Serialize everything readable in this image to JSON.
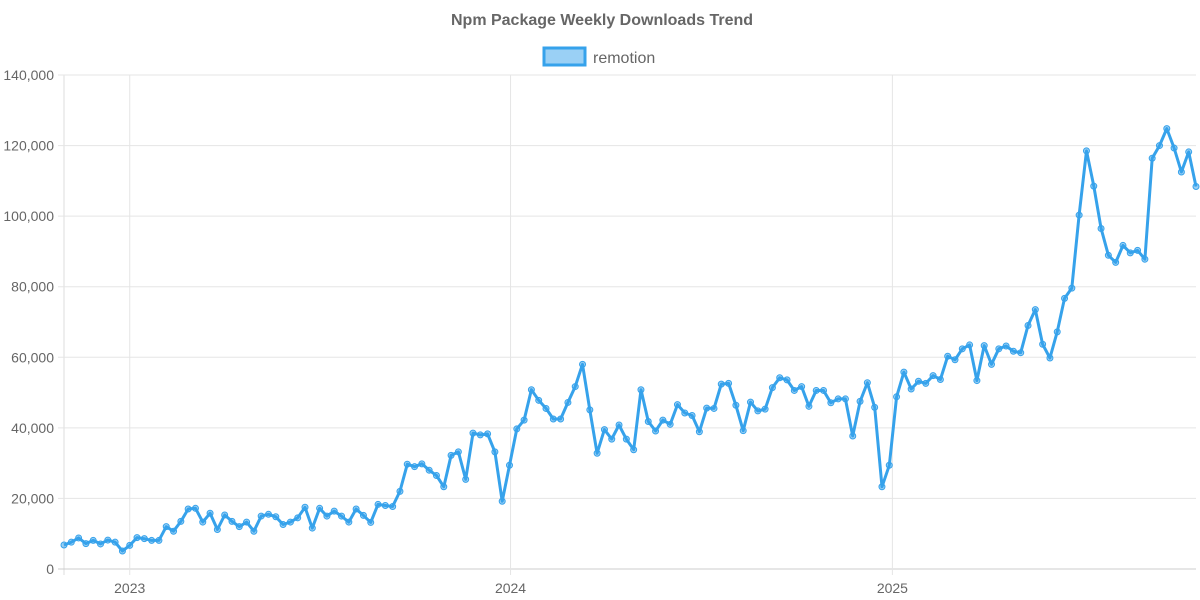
{
  "chart_data": {
    "type": "line",
    "title": "Npm Package Weekly Downloads Trend",
    "xlabel": "",
    "ylabel": "",
    "ylim": [
      0,
      140000
    ],
    "y_ticks": [
      "0",
      "20,000",
      "40,000",
      "60,000",
      "80,000",
      "100,000",
      "120,000",
      "140,000"
    ],
    "x_ticks": [
      "2023",
      "2024",
      "2025"
    ],
    "grid": true,
    "legend_position": "top",
    "colors": {
      "line": "#36a2eb",
      "fill": "rgba(54,162,235,0.5)"
    },
    "x": [
      "2022-10-30",
      "2022-11-06",
      "2022-11-13",
      "2022-11-20",
      "2022-11-27",
      "2022-12-04",
      "2022-12-11",
      "2022-12-18",
      "2022-12-25",
      "2023-01-01",
      "2023-01-08",
      "2023-01-15",
      "2023-01-22",
      "2023-01-29",
      "2023-02-05",
      "2023-02-12",
      "2023-02-19",
      "2023-02-26",
      "2023-03-05",
      "2023-03-12",
      "2023-03-19",
      "2023-03-26",
      "2023-04-02",
      "2023-04-09",
      "2023-04-16",
      "2023-04-23",
      "2023-04-30",
      "2023-05-07",
      "2023-05-14",
      "2023-05-21",
      "2023-05-28",
      "2023-06-04",
      "2023-06-11",
      "2023-06-18",
      "2023-06-25",
      "2023-07-02",
      "2023-07-09",
      "2023-07-16",
      "2023-07-23",
      "2023-07-30",
      "2023-08-06",
      "2023-08-13",
      "2023-08-20",
      "2023-08-27",
      "2023-09-03",
      "2023-09-10",
      "2023-09-17",
      "2023-09-24",
      "2023-10-01",
      "2023-10-08",
      "2023-10-15",
      "2023-10-22",
      "2023-10-29",
      "2023-11-05",
      "2023-11-12",
      "2023-11-19",
      "2023-11-26",
      "2023-12-03",
      "2023-12-10",
      "2023-12-17",
      "2023-12-24",
      "2023-12-31",
      "2024-01-07",
      "2024-01-14",
      "2024-01-21",
      "2024-01-28",
      "2024-02-04",
      "2024-02-11",
      "2024-02-18",
      "2024-02-25",
      "2024-03-03",
      "2024-03-10",
      "2024-03-17",
      "2024-03-24",
      "2024-03-31",
      "2024-04-07",
      "2024-04-14",
      "2024-04-21",
      "2024-04-28",
      "2024-05-05",
      "2024-05-12",
      "2024-05-19",
      "2024-05-26",
      "2024-06-02",
      "2024-06-09",
      "2024-06-16",
      "2024-06-23",
      "2024-06-30",
      "2024-07-07",
      "2024-07-14",
      "2024-07-21",
      "2024-07-28",
      "2024-08-04",
      "2024-08-11",
      "2024-08-18",
      "2024-08-25",
      "2024-09-01",
      "2024-09-08",
      "2024-09-15",
      "2024-09-22",
      "2024-09-29",
      "2024-10-06",
      "2024-10-13",
      "2024-10-20",
      "2024-10-27",
      "2024-11-03",
      "2024-11-10",
      "2024-11-17",
      "2024-11-24",
      "2024-12-01",
      "2024-12-08",
      "2024-12-15",
      "2024-12-22",
      "2024-12-29",
      "2025-01-05",
      "2025-01-12",
      "2025-01-19",
      "2025-01-26",
      "2025-02-02",
      "2025-02-09",
      "2025-02-16",
      "2025-02-23",
      "2025-03-02",
      "2025-03-09",
      "2025-03-16",
      "2025-03-23",
      "2025-03-30",
      "2025-04-06",
      "2025-04-13",
      "2025-04-20",
      "2025-04-27",
      "2025-05-04",
      "2025-05-11",
      "2025-05-18",
      "2025-05-25",
      "2025-06-01",
      "2025-06-08",
      "2025-06-15",
      "2025-06-22",
      "2025-06-29",
      "2025-07-06",
      "2025-07-13",
      "2025-07-20",
      "2025-07-27",
      "2025-08-03",
      "2025-08-10",
      "2025-08-17",
      "2025-08-24",
      "2025-08-31",
      "2025-09-07",
      "2025-09-14",
      "2025-09-21",
      "2025-09-28",
      "2025-10-05",
      "2025-10-12",
      "2025-10-19"
    ],
    "series": [
      {
        "name": "remotion",
        "values": [
          6800,
          7600,
          8800,
          7200,
          8100,
          7100,
          8200,
          7600,
          5100,
          6700,
          8900,
          8600,
          8100,
          8100,
          12000,
          10700,
          13500,
          17000,
          17200,
          13300,
          15800,
          11200,
          15300,
          13500,
          12000,
          13300,
          10700,
          15000,
          15500,
          14800,
          12600,
          13300,
          14500,
          17500,
          11600,
          17200,
          15000,
          16400,
          15000,
          13300,
          17000,
          15200,
          13200,
          18300,
          18000,
          17700,
          22000,
          29700,
          29000,
          29800,
          28000,
          26500,
          23300,
          32200,
          33200,
          25400,
          38500,
          38000,
          38300,
          33200,
          19200,
          29400,
          39700,
          42200,
          50800,
          47800,
          45500,
          42500,
          42500,
          47200,
          51700,
          58000,
          45100,
          32800,
          39500,
          36800,
          40800,
          36800,
          33800,
          50800,
          41800,
          39100,
          42200,
          41000,
          46600,
          44200,
          43500,
          38900,
          45600,
          45500,
          52400,
          52600,
          46400,
          39200,
          47300,
          44800,
          45300,
          51400,
          54200,
          53600,
          50600,
          51700,
          46100,
          50600,
          50600,
          47100,
          48200,
          48200,
          37700,
          47500,
          52800,
          45800,
          23300,
          29400,
          48800,
          55800,
          51000,
          53200,
          52600,
          54800,
          53700,
          60300,
          59300,
          62400,
          63500,
          53400,
          63300,
          58000,
          62400,
          63200,
          61700,
          61300,
          69000,
          73500,
          63700,
          59800,
          67200,
          76700,
          79600,
          100300,
          118500,
          108500,
          96500,
          88900,
          86900,
          91700,
          89600,
          90300,
          87800,
          116400,
          120000,
          124800,
          119300,
          112500,
          118200,
          108400
        ]
      }
    ]
  }
}
